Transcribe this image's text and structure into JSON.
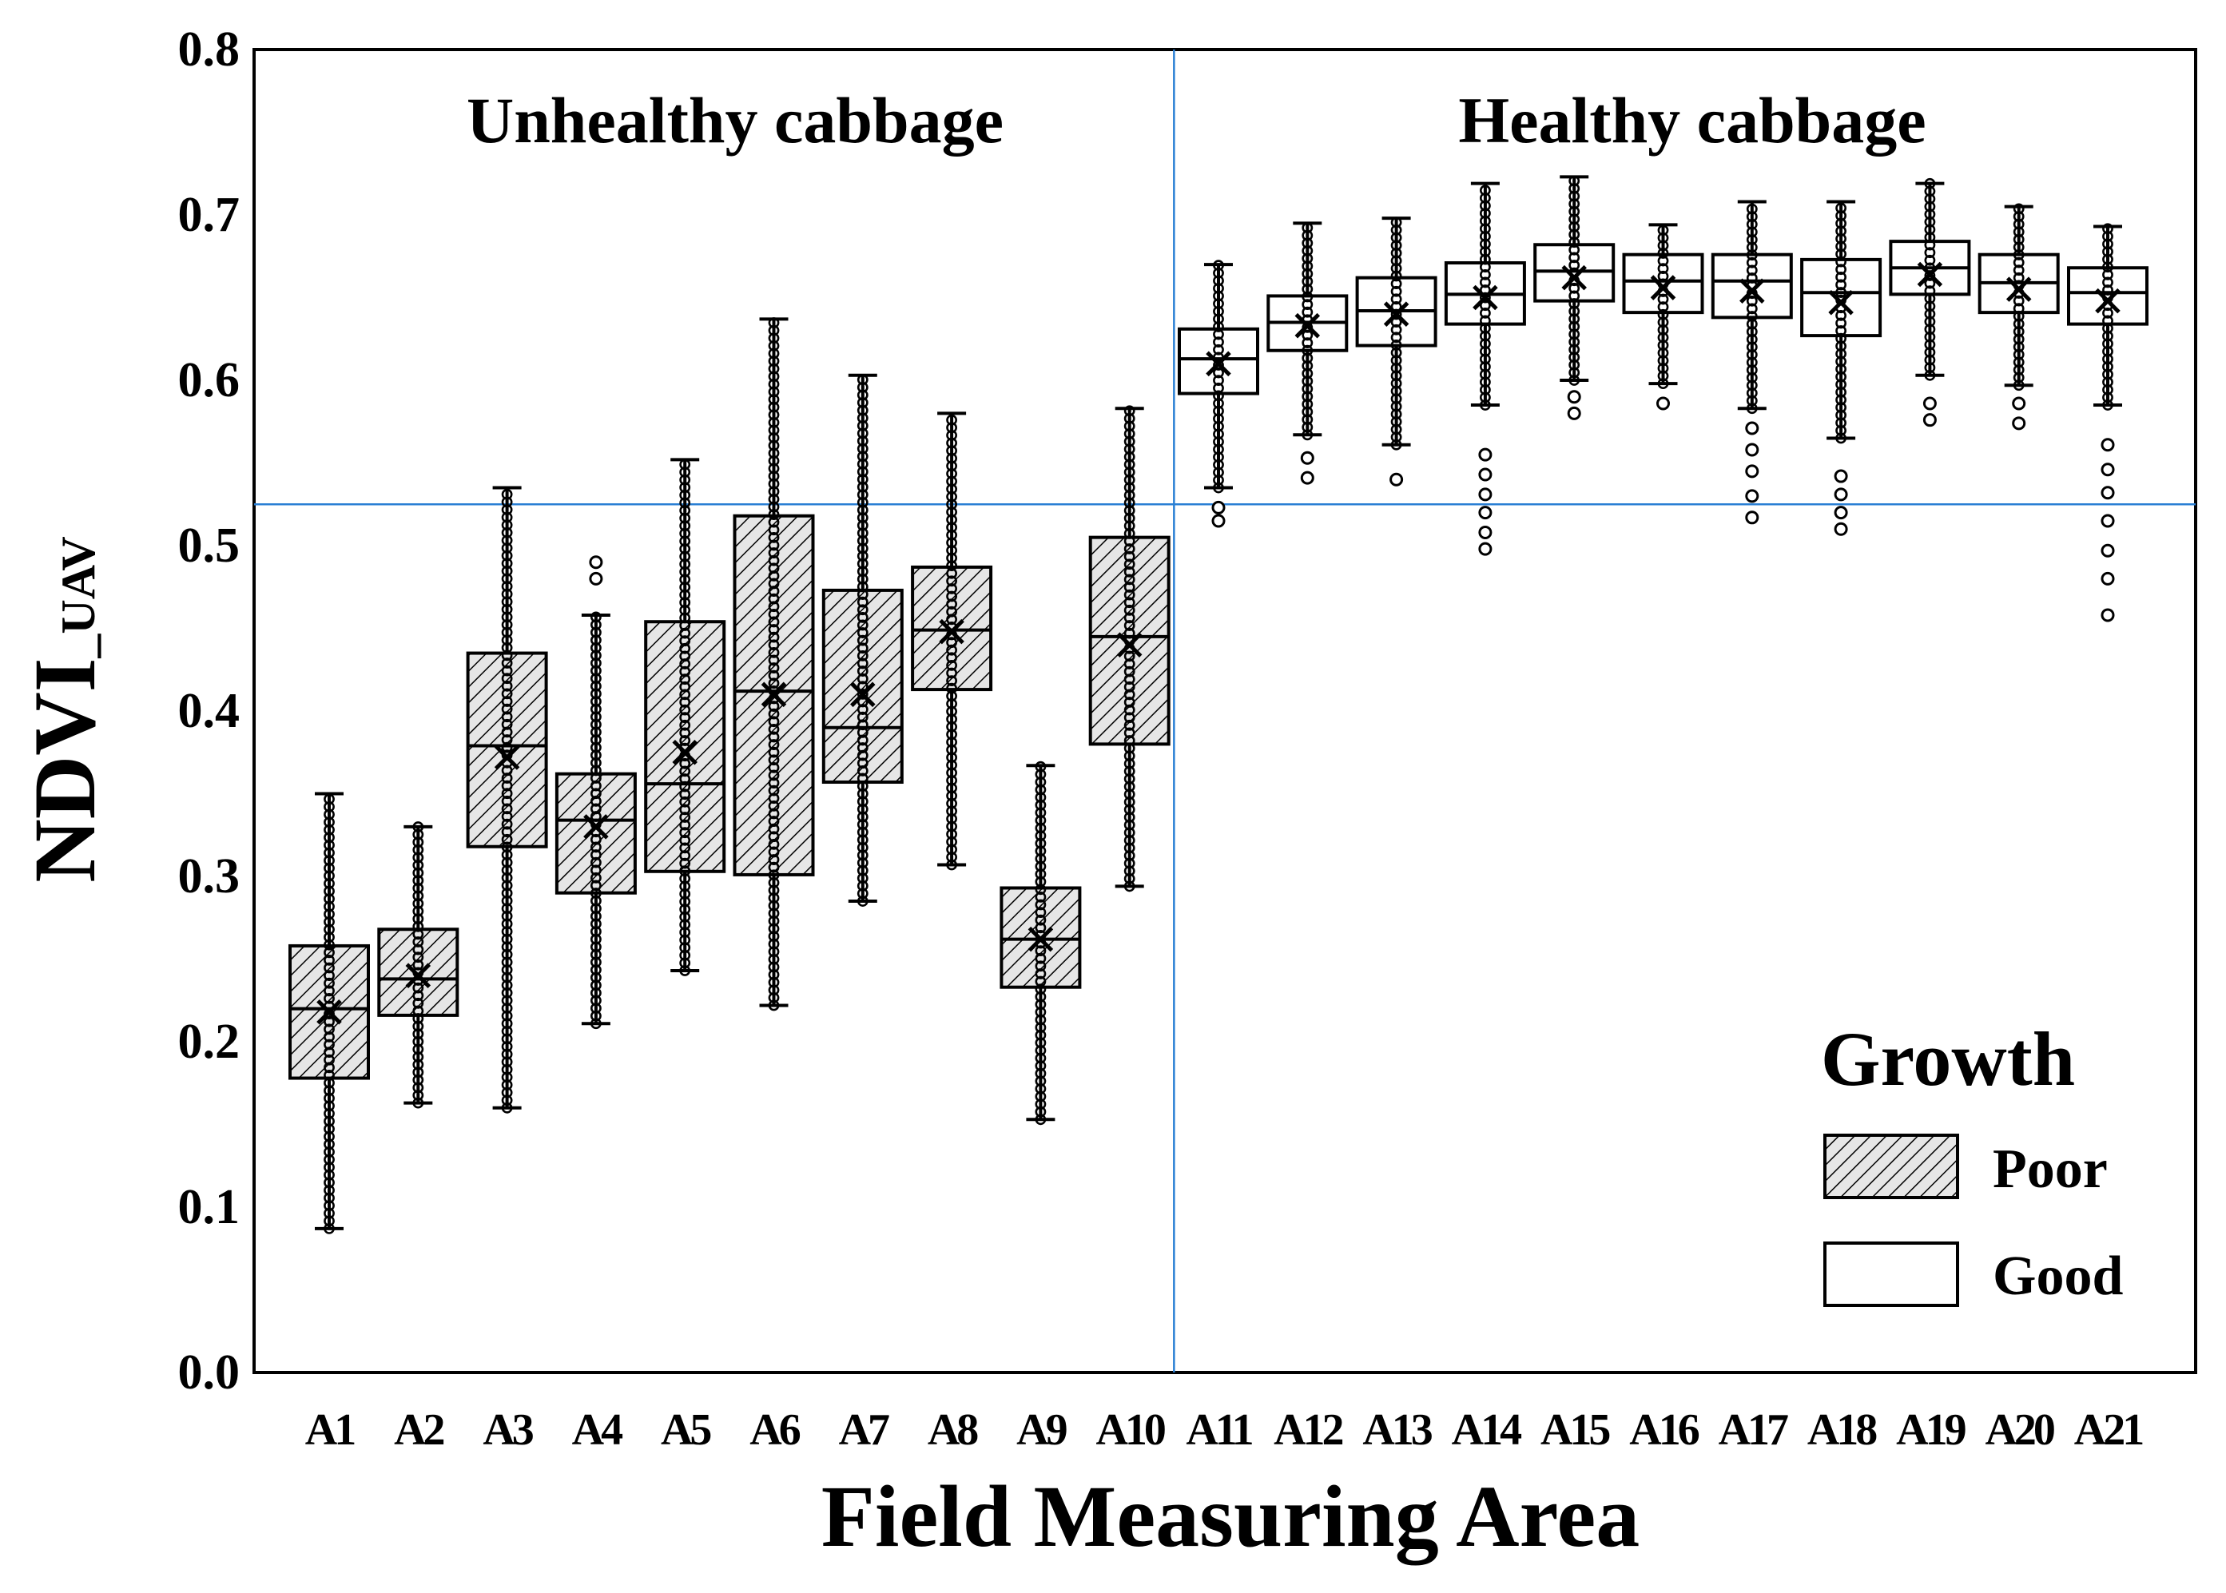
{
  "chart_data": {
    "type": "box",
    "xlabel": "Field Measuring Area",
    "ylabel": "NDVI",
    "ylabel_subscript": "_UAV",
    "ylim": [
      0.0,
      0.8
    ],
    "yticks": [
      "0.0",
      "0.1",
      "0.2",
      "0.3",
      "0.4",
      "0.5",
      "0.6",
      "0.7",
      "0.8"
    ],
    "threshold_y": 0.525,
    "annotations": {
      "left_region": "Unhealthy cabbage",
      "right_region": "Healthy cabbage"
    },
    "legend": {
      "title": "Growth",
      "items": [
        {
          "label": "Poor",
          "style": "hatched"
        },
        {
          "label": "Good",
          "style": "plain"
        }
      ]
    },
    "categories": [
      "A1",
      "A2",
      "A3",
      "A4",
      "A5",
      "A6",
      "A7",
      "A8",
      "A9",
      "A10",
      "A11",
      "A12",
      "A13",
      "A14",
      "A15",
      "A16",
      "A17",
      "A18",
      "A19",
      "A20",
      "A21"
    ],
    "groups": [
      "Poor",
      "Poor",
      "Poor",
      "Poor",
      "Poor",
      "Poor",
      "Poor",
      "Poor",
      "Poor",
      "Poor",
      "Good",
      "Good",
      "Good",
      "Good",
      "Good",
      "Good",
      "Good",
      "Good",
      "Good",
      "Good",
      "Good"
    ],
    "whisker_low": [
      0.087,
      0.163,
      0.16,
      0.211,
      0.243,
      0.222,
      0.285,
      0.307,
      0.153,
      0.294,
      0.535,
      0.567,
      0.561,
      0.585,
      0.6,
      0.598,
      0.583,
      0.565,
      0.603,
      0.597,
      0.585
    ],
    "q1": [
      0.178,
      0.216,
      0.318,
      0.29,
      0.303,
      0.301,
      0.357,
      0.413,
      0.233,
      0.38,
      0.592,
      0.618,
      0.621,
      0.634,
      0.648,
      0.641,
      0.638,
      0.627,
      0.652,
      0.641,
      0.634
    ],
    "median": [
      0.22,
      0.238,
      0.379,
      0.334,
      0.356,
      0.412,
      0.39,
      0.449,
      0.262,
      0.445,
      0.613,
      0.635,
      0.642,
      0.652,
      0.666,
      0.66,
      0.66,
      0.653,
      0.668,
      0.659,
      0.653
    ],
    "q3": [
      0.258,
      0.268,
      0.435,
      0.362,
      0.454,
      0.518,
      0.473,
      0.487,
      0.293,
      0.505,
      0.631,
      0.651,
      0.662,
      0.671,
      0.682,
      0.676,
      0.676,
      0.673,
      0.684,
      0.676,
      0.668
    ],
    "whisker_high": [
      0.35,
      0.33,
      0.535,
      0.458,
      0.552,
      0.637,
      0.603,
      0.58,
      0.367,
      0.583,
      0.67,
      0.695,
      0.698,
      0.719,
      0.723,
      0.694,
      0.708,
      0.708,
      0.719,
      0.705,
      0.693
    ],
    "mean": [
      0.218,
      0.24,
      0.372,
      0.33,
      0.375,
      0.41,
      0.41,
      0.448,
      0.262,
      0.44,
      0.61,
      0.633,
      0.64,
      0.65,
      0.662,
      0.656,
      0.654,
      0.647,
      0.664,
      0.655,
      0.648
    ],
    "outliers_low": [
      [],
      [],
      [],
      [],
      [],
      [],
      [],
      [],
      [],
      [],
      [
        0.515,
        0.523
      ],
      [
        0.541,
        0.553
      ],
      [
        0.54
      ],
      [
        0.498,
        0.508,
        0.52,
        0.531,
        0.543,
        0.555
      ],
      [
        0.58,
        0.59
      ],
      [
        0.586
      ],
      [
        0.517,
        0.53,
        0.545,
        0.558,
        0.571
      ],
      [
        0.51,
        0.52,
        0.531,
        0.542
      ],
      [
        0.576,
        0.586
      ],
      [
        0.574,
        0.586
      ],
      [
        0.458,
        0.48,
        0.497,
        0.515,
        0.532,
        0.546,
        0.561
      ]
    ],
    "outliers_high": [
      [],
      [],
      [],
      [
        0.48,
        0.49
      ],
      [],
      [],
      [],
      [],
      [],
      [],
      [],
      [],
      [],
      [],
      [],
      [],
      [],
      [],
      [],
      [],
      []
    ]
  }
}
